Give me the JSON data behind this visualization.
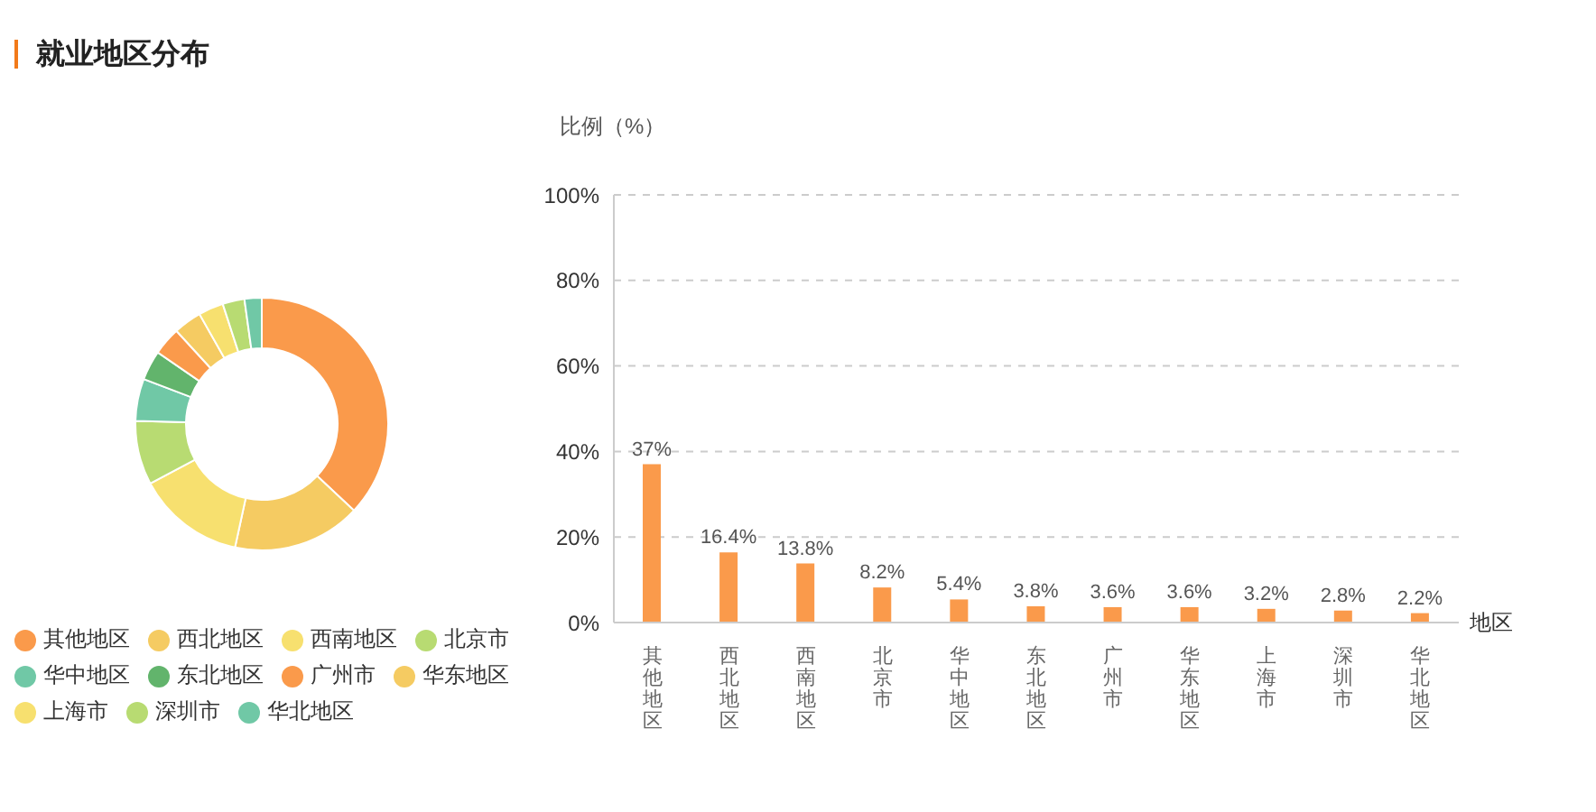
{
  "chart_data": [
    {
      "type": "donut",
      "title": "就业地区分布",
      "categories": [
        "其他地区",
        "西北地区",
        "西南地区",
        "北京市",
        "华中地区",
        "东北地区",
        "广州市",
        "华东地区",
        "上海市",
        "深圳市",
        "华北地区"
      ],
      "values": [
        37,
        16.4,
        13.8,
        8.2,
        5.4,
        3.8,
        3.6,
        3.6,
        3.2,
        2.8,
        2.2
      ],
      "colors": [
        "#fa9a4b",
        "#f5cb62",
        "#f7e06f",
        "#b8db72",
        "#70c8a6",
        "#62b46c",
        "#fa9a4b",
        "#f5cb62",
        "#f7e06f",
        "#b8db72",
        "#70c8a6"
      ],
      "legend": "bottom"
    },
    {
      "type": "bar",
      "xlabel": "地区",
      "ylabel": "比例（%）",
      "categories": [
        "其他地区",
        "西北地区",
        "西南地区",
        "北京市",
        "华中地区",
        "东北地区",
        "广州市",
        "华东地区",
        "上海市",
        "深圳市",
        "华北地区"
      ],
      "series": [
        {
          "color": "#fa9a4b",
          "values": [
            37,
            16.4,
            13.8,
            8.2,
            5.4,
            3.8,
            3.6,
            3.6,
            3.2,
            2.8,
            2.2
          ],
          "value_labels": [
            "37%",
            "16.4%",
            "13.8%",
            "8.2%",
            "5.4%",
            "3.8%",
            "3.6%",
            "3.6%",
            "3.2%",
            "2.8%",
            "2.2%"
          ]
        }
      ],
      "ylim": [
        0,
        100
      ],
      "yticks": [
        {
          "value": 0,
          "label": "0%"
        },
        {
          "value": 20,
          "label": "20%"
        },
        {
          "value": 40,
          "label": "40%"
        },
        {
          "value": 60,
          "label": "60%"
        },
        {
          "value": 80,
          "label": "80%"
        },
        {
          "value": 100,
          "label": "100%"
        }
      ],
      "grid": "y"
    }
  ]
}
